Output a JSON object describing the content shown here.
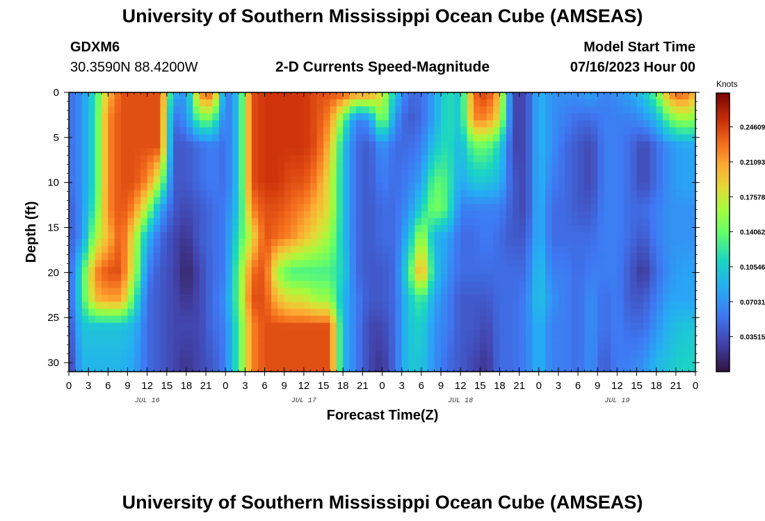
{
  "header": {
    "title": "University of Southern Mississippi Ocean Cube (AMSEAS)",
    "station": "GDXM6",
    "coords": "30.3590N  88.4200W",
    "chart_title": "2-D Currents Speed-Magnitude",
    "model_start_label": "Model Start Time",
    "model_start_value": "07/16/2023 Hour 00"
  },
  "footer": {
    "title": "University of Southern Mississippi Ocean Cube (AMSEAS)"
  },
  "chart_data": {
    "type": "heatmap",
    "title": "2-D Currents Speed-Magnitude",
    "xlabel": "Forecast Time(Z)",
    "ylabel": "Depth (ft)",
    "x_range_hours": [
      0,
      96
    ],
    "ylim": [
      0,
      31
    ],
    "x_tick_labels": [
      "0",
      "3",
      "6",
      "9",
      "12",
      "15",
      "18",
      "21",
      "0",
      "3",
      "6",
      "9",
      "12",
      "15",
      "18",
      "21",
      "0",
      "3",
      "6",
      "9",
      "12",
      "15",
      "18",
      "21",
      "0",
      "3",
      "6",
      "9",
      "12",
      "15",
      "18",
      "21",
      "0"
    ],
    "y_ticks": [
      0,
      5,
      10,
      15,
      20,
      25,
      30
    ],
    "y_tick_labels": [
      "0",
      "5",
      "10",
      "15",
      "20",
      "25",
      "30"
    ],
    "date_labels": [
      {
        "label": "JUL 16",
        "hour": 12
      },
      {
        "label": "JUL 17",
        "hour": 36
      },
      {
        "label": "JUL 18",
        "hour": 60
      },
      {
        "label": "JUL 19",
        "hour": 84
      }
    ],
    "colorbar": {
      "unit": "Knots",
      "min": 0.0,
      "max": 0.28,
      "tick_values": [
        0.24609,
        0.21093,
        0.17578,
        0.14062,
        0.10546,
        0.07031,
        0.03515
      ],
      "tick_labels": [
        "0.24609",
        "0.21093",
        "0.17578",
        "0.14062",
        "0.10546",
        "0.07031",
        "0.03515"
      ]
    },
    "depth_levels_ft": [
      0,
      3,
      6,
      10,
      13,
      16,
      20,
      23,
      26,
      30
    ],
    "columns": [
      {
        "hour": 0,
        "speed": [
          0.05,
          0.05,
          0.05,
          0.05,
          0.04,
          0.04,
          0.04,
          0.04,
          0.03,
          0.02
        ]
      },
      {
        "hour": 2,
        "speed": [
          0.07,
          0.07,
          0.07,
          0.07,
          0.07,
          0.07,
          0.12,
          0.12,
          0.1,
          0.09
        ]
      },
      {
        "hour": 4,
        "speed": [
          0.12,
          0.12,
          0.12,
          0.12,
          0.13,
          0.16,
          0.22,
          0.2,
          0.1,
          0.09
        ]
      },
      {
        "hour": 6,
        "speed": [
          0.2,
          0.22,
          0.22,
          0.22,
          0.22,
          0.2,
          0.24,
          0.21,
          0.1,
          0.09
        ]
      },
      {
        "hour": 8,
        "speed": [
          0.24,
          0.24,
          0.24,
          0.24,
          0.24,
          0.24,
          0.24,
          0.21,
          0.1,
          0.09
        ]
      },
      {
        "hour": 10,
        "speed": [
          0.24,
          0.24,
          0.24,
          0.24,
          0.22,
          0.18,
          0.17,
          0.13,
          0.09,
          0.08
        ]
      },
      {
        "hour": 12,
        "speed": [
          0.24,
          0.24,
          0.24,
          0.22,
          0.16,
          0.09,
          0.06,
          0.05,
          0.05,
          0.05
        ]
      },
      {
        "hour": 14,
        "speed": [
          0.24,
          0.24,
          0.24,
          0.16,
          0.08,
          0.05,
          0.04,
          0.04,
          0.04,
          0.04
        ]
      },
      {
        "hour": 16,
        "speed": [
          0.09,
          0.05,
          0.04,
          0.04,
          0.04,
          0.03,
          0.03,
          0.03,
          0.03,
          0.03
        ]
      },
      {
        "hour": 18,
        "speed": [
          0.07,
          0.07,
          0.04,
          0.04,
          0.03,
          0.02,
          0.01,
          0.02,
          0.03,
          0.02
        ]
      },
      {
        "hour": 20,
        "speed": [
          0.22,
          0.14,
          0.05,
          0.05,
          0.04,
          0.04,
          0.03,
          0.03,
          0.03,
          0.03
        ]
      },
      {
        "hour": 22,
        "speed": [
          0.24,
          0.14,
          0.06,
          0.06,
          0.05,
          0.05,
          0.05,
          0.05,
          0.05,
          0.04
        ]
      },
      {
        "hour": 24,
        "speed": [
          0.05,
          0.05,
          0.05,
          0.05,
          0.06,
          0.06,
          0.06,
          0.07,
          0.06,
          0.06
        ]
      },
      {
        "hour": 26,
        "speed": [
          0.1,
          0.1,
          0.1,
          0.1,
          0.1,
          0.12,
          0.14,
          0.14,
          0.13,
          0.13
        ]
      },
      {
        "hour": 28,
        "speed": [
          0.24,
          0.24,
          0.24,
          0.24,
          0.22,
          0.18,
          0.23,
          0.24,
          0.22,
          0.22
        ]
      },
      {
        "hour": 30,
        "speed": [
          0.25,
          0.25,
          0.25,
          0.25,
          0.24,
          0.24,
          0.24,
          0.24,
          0.24,
          0.24
        ]
      },
      {
        "hour": 32,
        "speed": [
          0.25,
          0.25,
          0.25,
          0.25,
          0.24,
          0.23,
          0.16,
          0.2,
          0.24,
          0.24
        ]
      },
      {
        "hour": 34,
        "speed": [
          0.25,
          0.25,
          0.25,
          0.24,
          0.23,
          0.22,
          0.13,
          0.18,
          0.24,
          0.24
        ]
      },
      {
        "hour": 36,
        "speed": [
          0.25,
          0.25,
          0.25,
          0.24,
          0.22,
          0.2,
          0.13,
          0.18,
          0.24,
          0.24
        ]
      },
      {
        "hour": 38,
        "speed": [
          0.24,
          0.24,
          0.24,
          0.22,
          0.2,
          0.18,
          0.13,
          0.16,
          0.24,
          0.24
        ]
      },
      {
        "hour": 40,
        "speed": [
          0.24,
          0.22,
          0.2,
          0.18,
          0.18,
          0.16,
          0.13,
          0.16,
          0.24,
          0.24
        ]
      },
      {
        "hour": 42,
        "speed": [
          0.24,
          0.14,
          0.1,
          0.1,
          0.1,
          0.1,
          0.11,
          0.09,
          0.09,
          0.09
        ]
      },
      {
        "hour": 44,
        "speed": [
          0.22,
          0.06,
          0.05,
          0.05,
          0.05,
          0.05,
          0.05,
          0.06,
          0.06,
          0.06
        ]
      },
      {
        "hour": 46,
        "speed": [
          0.22,
          0.07,
          0.04,
          0.04,
          0.04,
          0.04,
          0.04,
          0.04,
          0.03,
          0.03
        ]
      },
      {
        "hour": 48,
        "speed": [
          0.18,
          0.16,
          0.07,
          0.06,
          0.05,
          0.05,
          0.04,
          0.04,
          0.03,
          0.02
        ]
      },
      {
        "hour": 50,
        "speed": [
          0.1,
          0.07,
          0.05,
          0.05,
          0.05,
          0.05,
          0.05,
          0.05,
          0.05,
          0.05
        ]
      },
      {
        "hour": 52,
        "speed": [
          0.05,
          0.04,
          0.05,
          0.06,
          0.07,
          0.09,
          0.12,
          0.1,
          0.1,
          0.1
        ]
      },
      {
        "hour": 54,
        "speed": [
          0.05,
          0.05,
          0.06,
          0.08,
          0.11,
          0.17,
          0.22,
          0.13,
          0.11,
          0.1
        ]
      },
      {
        "hour": 56,
        "speed": [
          0.08,
          0.08,
          0.1,
          0.14,
          0.15,
          0.09,
          0.1,
          0.08,
          0.07,
          0.07
        ]
      },
      {
        "hour": 58,
        "speed": [
          0.12,
          0.12,
          0.12,
          0.13,
          0.13,
          0.08,
          0.07,
          0.06,
          0.06,
          0.05
        ]
      },
      {
        "hour": 60,
        "speed": [
          0.1,
          0.1,
          0.09,
          0.08,
          0.06,
          0.05,
          0.05,
          0.04,
          0.04,
          0.04
        ]
      },
      {
        "hour": 62,
        "speed": [
          0.23,
          0.22,
          0.14,
          0.1,
          0.06,
          0.05,
          0.05,
          0.04,
          0.04,
          0.03
        ]
      },
      {
        "hour": 64,
        "speed": [
          0.25,
          0.22,
          0.14,
          0.1,
          0.06,
          0.06,
          0.05,
          0.04,
          0.03,
          0.02
        ]
      },
      {
        "hour": 66,
        "speed": [
          0.2,
          0.18,
          0.11,
          0.09,
          0.06,
          0.05,
          0.05,
          0.05,
          0.05,
          0.05
        ]
      },
      {
        "hour": 68,
        "speed": [
          0.03,
          0.03,
          0.03,
          0.04,
          0.04,
          0.04,
          0.05,
          0.05,
          0.05,
          0.05
        ]
      },
      {
        "hour": 70,
        "speed": [
          0.03,
          0.03,
          0.03,
          0.03,
          0.03,
          0.04,
          0.05,
          0.06,
          0.06,
          0.06
        ]
      },
      {
        "hour": 72,
        "speed": [
          0.09,
          0.09,
          0.09,
          0.09,
          0.09,
          0.09,
          0.1,
          0.1,
          0.09,
          0.09
        ]
      },
      {
        "hour": 74,
        "speed": [
          0.07,
          0.07,
          0.07,
          0.06,
          0.05,
          0.05,
          0.06,
          0.07,
          0.06,
          0.06
        ]
      },
      {
        "hour": 76,
        "speed": [
          0.07,
          0.06,
          0.05,
          0.05,
          0.05,
          0.05,
          0.06,
          0.06,
          0.06,
          0.06
        ]
      },
      {
        "hour": 78,
        "speed": [
          0.07,
          0.05,
          0.04,
          0.04,
          0.04,
          0.05,
          0.05,
          0.05,
          0.05,
          0.05
        ]
      },
      {
        "hour": 80,
        "speed": [
          0.08,
          0.05,
          0.03,
          0.03,
          0.04,
          0.05,
          0.06,
          0.07,
          0.07,
          0.07
        ]
      },
      {
        "hour": 82,
        "speed": [
          0.06,
          0.06,
          0.06,
          0.06,
          0.06,
          0.06,
          0.06,
          0.05,
          0.05,
          0.04
        ]
      },
      {
        "hour": 84,
        "speed": [
          0.07,
          0.06,
          0.06,
          0.06,
          0.06,
          0.06,
          0.06,
          0.06,
          0.06,
          0.06
        ]
      },
      {
        "hour": 86,
        "speed": [
          0.08,
          0.06,
          0.05,
          0.05,
          0.05,
          0.05,
          0.04,
          0.04,
          0.05,
          0.06
        ]
      },
      {
        "hour": 88,
        "speed": [
          0.1,
          0.07,
          0.03,
          0.03,
          0.05,
          0.04,
          0.02,
          0.04,
          0.05,
          0.07
        ]
      },
      {
        "hour": 90,
        "speed": [
          0.14,
          0.09,
          0.05,
          0.05,
          0.06,
          0.06,
          0.05,
          0.06,
          0.07,
          0.09
        ]
      },
      {
        "hour": 92,
        "speed": [
          0.22,
          0.14,
          0.07,
          0.07,
          0.07,
          0.07,
          0.07,
          0.08,
          0.09,
          0.1
        ]
      },
      {
        "hour": 94,
        "speed": [
          0.24,
          0.16,
          0.08,
          0.08,
          0.07,
          0.07,
          0.08,
          0.08,
          0.1,
          0.11
        ]
      },
      {
        "hour": 96,
        "speed": [
          0.2,
          0.15,
          0.08,
          0.08,
          0.07,
          0.07,
          0.08,
          0.08,
          0.1,
          0.11
        ]
      }
    ]
  }
}
